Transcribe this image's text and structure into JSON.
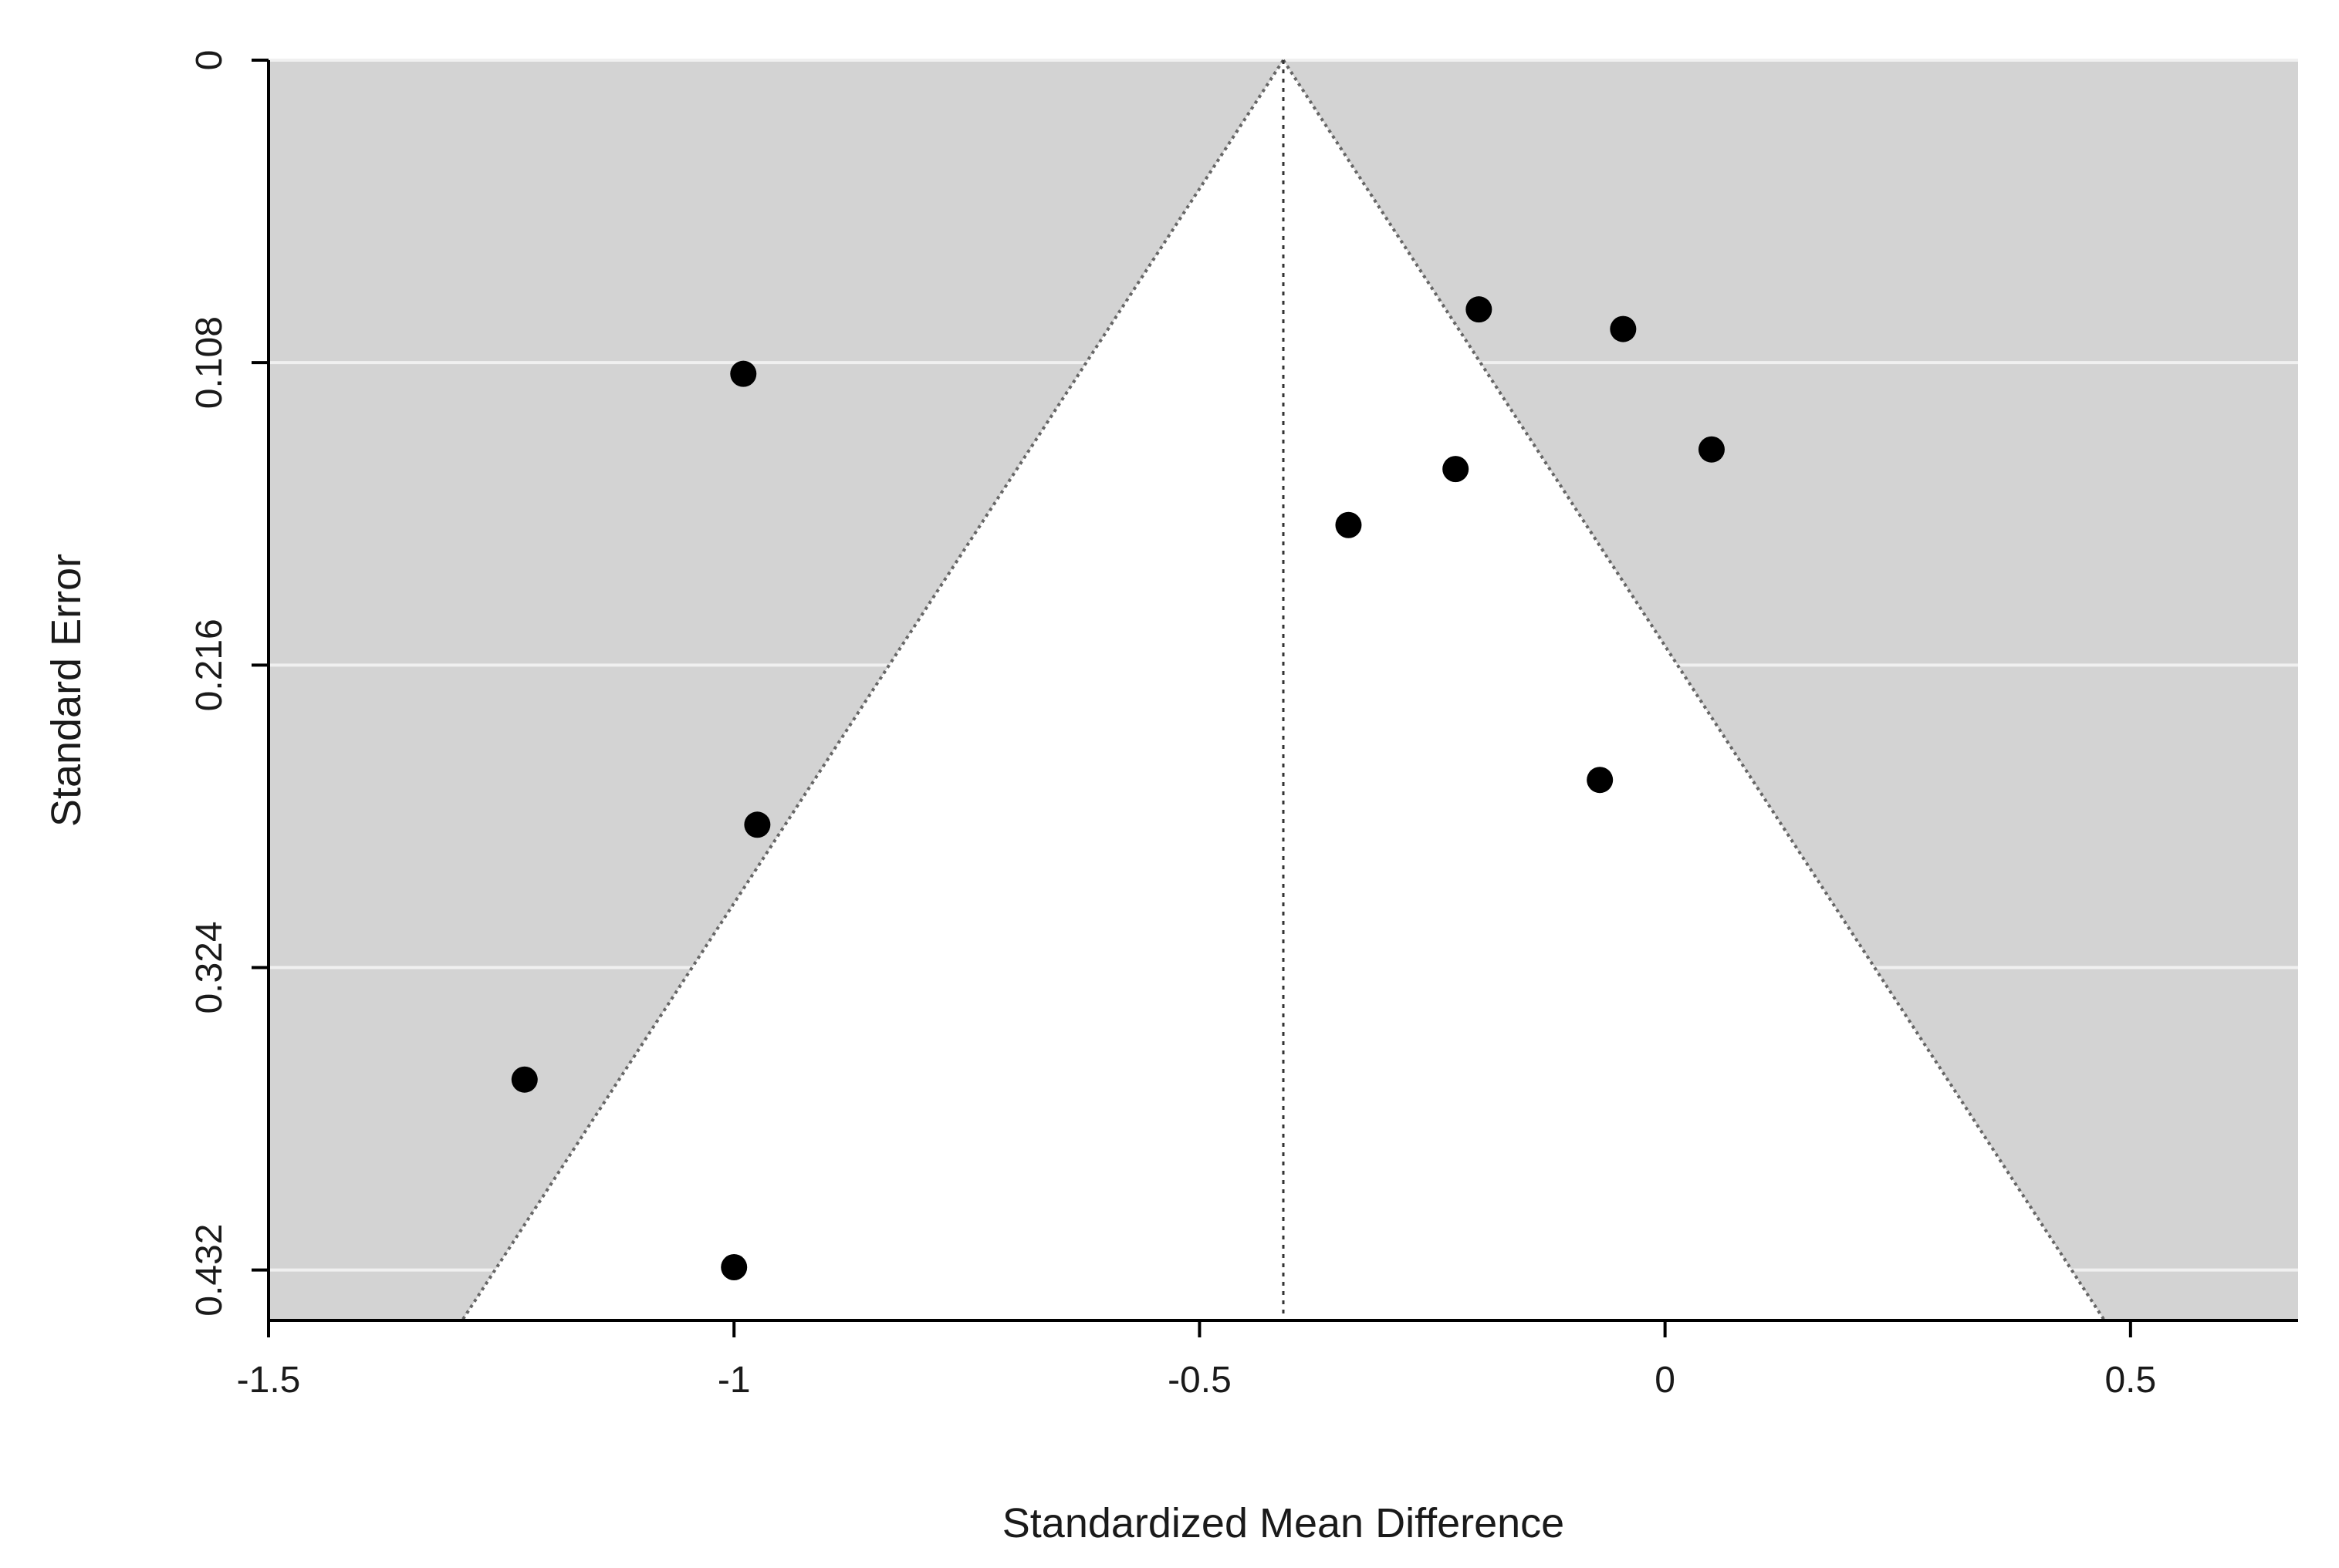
{
  "chart_data": {
    "type": "scatter",
    "title": "",
    "xlabel": "Standardized Mean Difference",
    "ylabel": "Standard Error",
    "xlim": [
      -1.5,
      0.68
    ],
    "ylim": [
      0,
      0.45
    ],
    "y_reversed": true,
    "x_ticks": [
      {
        "value": -1.5,
        "label": "-1.5"
      },
      {
        "value": -1,
        "label": "-1"
      },
      {
        "value": -0.5,
        "label": "-0.5"
      },
      {
        "value": 0,
        "label": "0"
      },
      {
        "value": 0.5,
        "label": "0.5"
      }
    ],
    "y_ticks": [
      {
        "value": 0,
        "label": "0"
      },
      {
        "value": 0.108,
        "label": "0.108"
      },
      {
        "value": 0.216,
        "label": "0.216"
      },
      {
        "value": 0.324,
        "label": "0.324"
      },
      {
        "value": 0.432,
        "label": "0.432"
      }
    ],
    "funnel": {
      "center": -0.41,
      "confidence_z": 1.96,
      "inside_color": "#ffffff",
      "outside_color": "#d3d3d3",
      "line_style": "dotted"
    },
    "grid": true,
    "grid_color": "#f0f0f0",
    "point_color": "#000000",
    "points": [
      {
        "x": -0.99,
        "y": 0.112
      },
      {
        "x": -0.2,
        "y": 0.089
      },
      {
        "x": -0.045,
        "y": 0.096
      },
      {
        "x": 0.05,
        "y": 0.139
      },
      {
        "x": -0.225,
        "y": 0.146
      },
      {
        "x": -0.34,
        "y": 0.166
      },
      {
        "x": -0.07,
        "y": 0.257
      },
      {
        "x": -0.975,
        "y": 0.273
      },
      {
        "x": -1.225,
        "y": 0.364
      },
      {
        "x": -1,
        "y": 0.431
      }
    ]
  }
}
